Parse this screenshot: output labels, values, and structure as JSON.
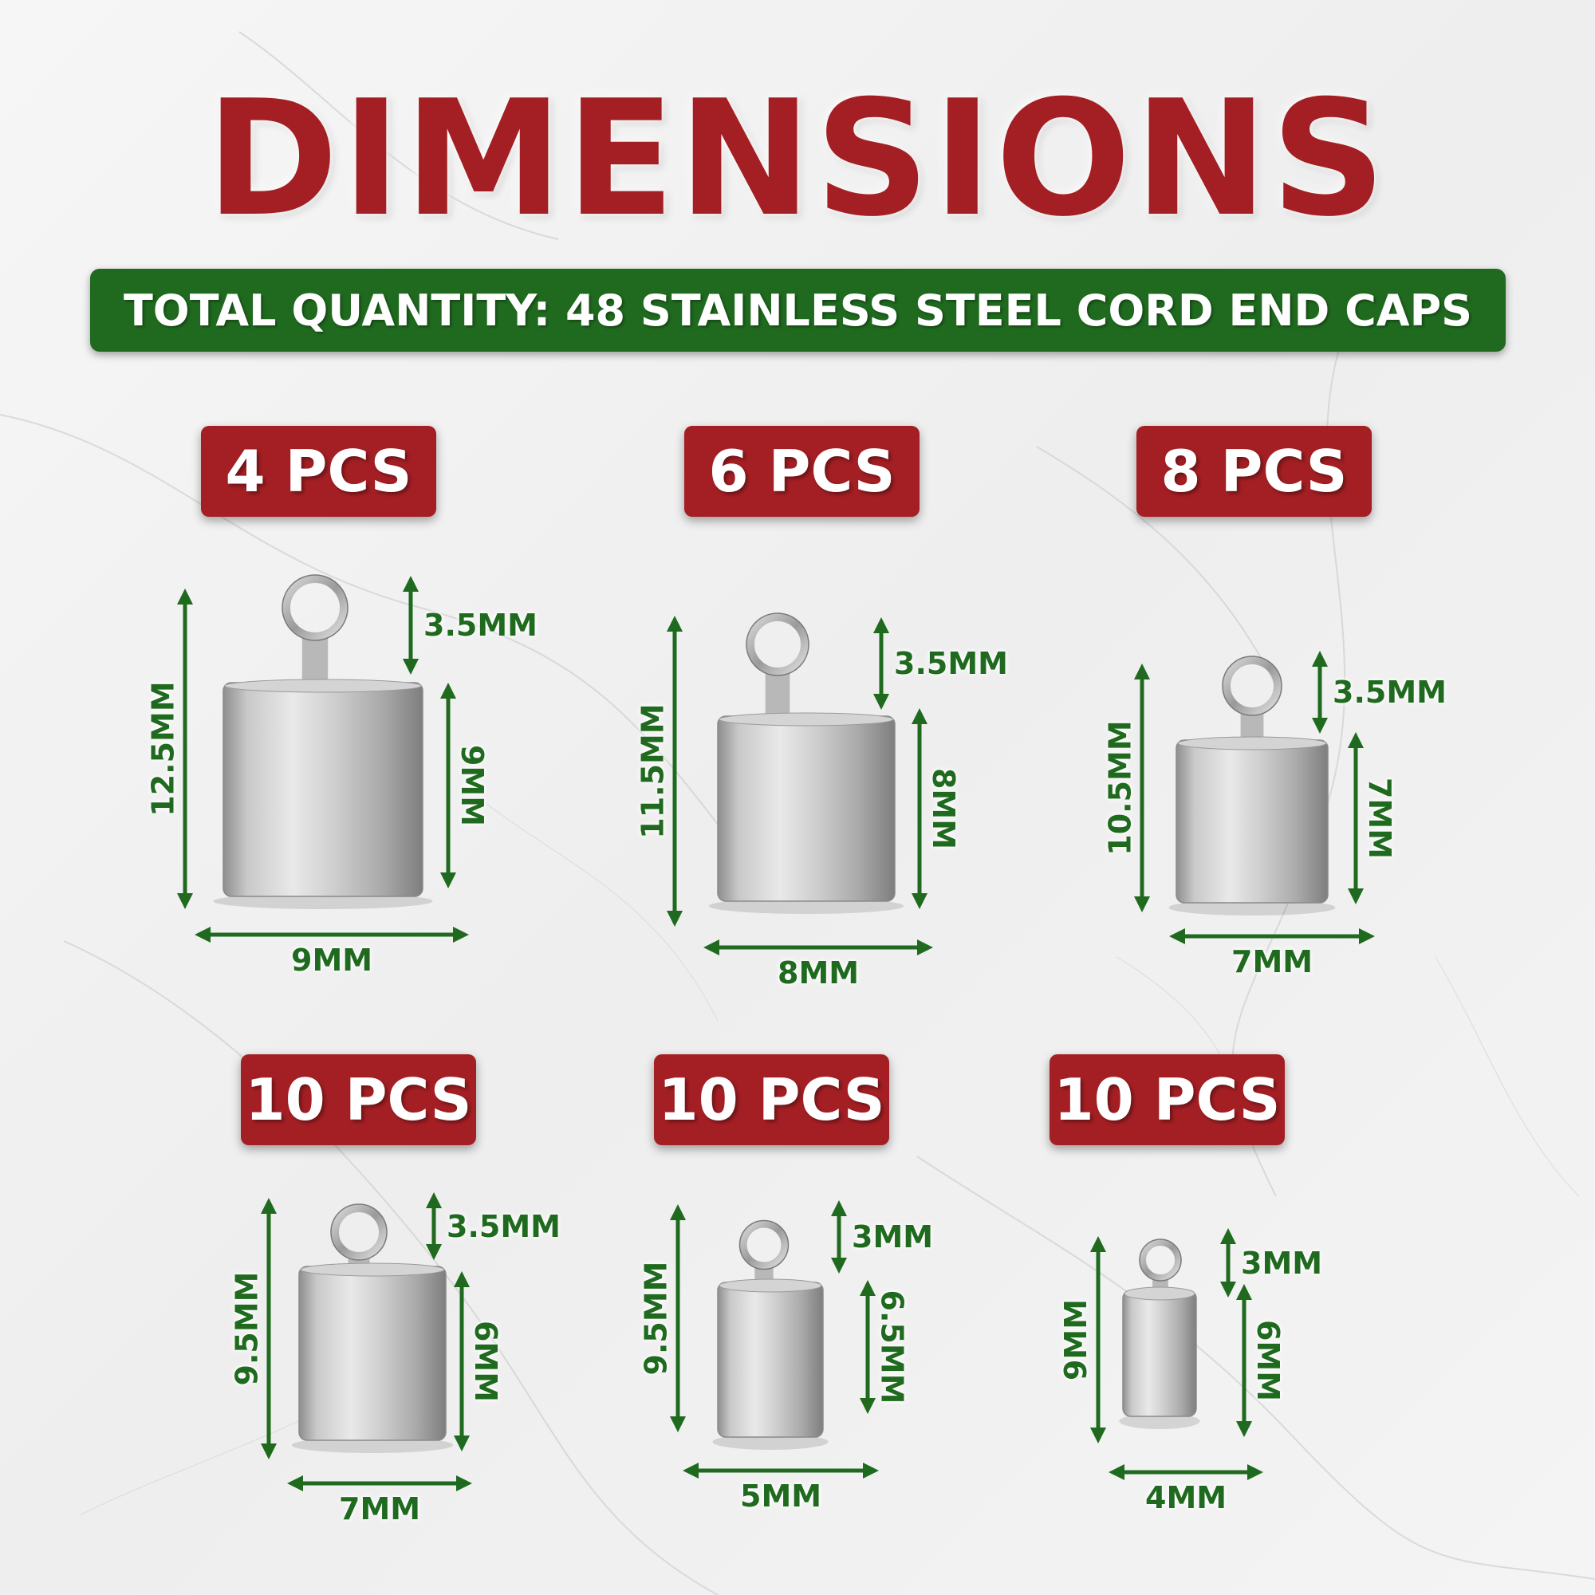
{
  "title": "DIMENSIONS",
  "quantity_banner": "TOTAL QUANTITY: 48 STAINLESS STEEL CORD END CAPS",
  "colors": {
    "red": "#a41f24",
    "green": "#1f6a1e",
    "background": "#f1f1f1"
  },
  "items": [
    {
      "pcs": "4 PCS",
      "total_height": "12.5MM",
      "loop": "3.5MM",
      "body_height": "9MM",
      "width": "9MM"
    },
    {
      "pcs": "6 PCS",
      "total_height": "11.5MM",
      "loop": "3.5MM",
      "body_height": "8MM",
      "width": "8MM"
    },
    {
      "pcs": "8 PCS",
      "total_height": "10.5MM",
      "loop": "3.5MM",
      "body_height": "7MM",
      "width": "7MM"
    },
    {
      "pcs": "10 PCS",
      "total_height": "9.5MM",
      "loop": "3.5MM",
      "body_height": "6MM",
      "width": "7MM"
    },
    {
      "pcs": "10 PCS",
      "total_height": "9.5MM",
      "loop": "3MM",
      "body_height": "6.5MM",
      "width": "5MM"
    },
    {
      "pcs": "10 PCS",
      "total_height": "9MM",
      "loop": "3MM",
      "body_height": "6MM",
      "width": "4MM"
    }
  ]
}
